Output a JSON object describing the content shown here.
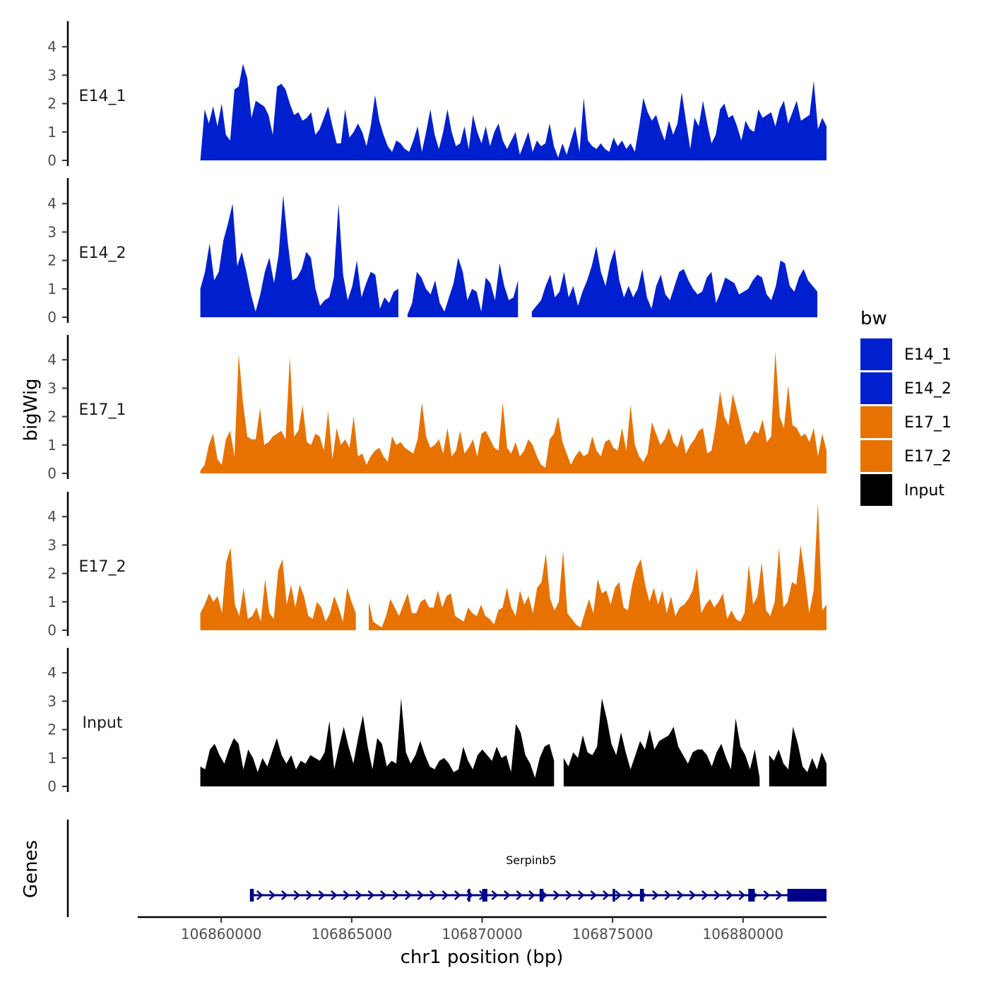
{
  "chart_data": {
    "type": "area",
    "title": "",
    "ylabel": "bigWig",
    "xlabel": "chr1 position (bp)",
    "genes_label": "Genes",
    "xlim": [
      106856800,
      106883200
    ],
    "ylim": [
      0,
      4.9
    ],
    "x_ticks": [
      106860000,
      106865000,
      106870000,
      106875000,
      106880000
    ],
    "x_tick_labels": [
      "106860000",
      "106865000",
      "106870000",
      "106875000",
      "106880000"
    ],
    "y_ticks": [
      0,
      1,
      2,
      3,
      4
    ],
    "y_tick_labels": [
      "0",
      "1",
      "2",
      "3",
      "4"
    ],
    "x_start": 106859200,
    "x_end": 106883200,
    "series": [
      {
        "name": "E14_1",
        "color": "#0020D0",
        "gaps": [
          [
            106871800,
            106871900
          ]
        ],
        "values": [
          0,
          1.8,
          1.3,
          1.9,
          1.2,
          2.0,
          0.9,
          0.7,
          2.5,
          2.6,
          3.4,
          2.9,
          1.5,
          2.1,
          2.0,
          1.9,
          1.6,
          0.9,
          2.6,
          2.7,
          2.5,
          2.0,
          1.6,
          1.7,
          1.4,
          1.5,
          1.7,
          0.9,
          1.1,
          1.5,
          1.9,
          1.2,
          0.6,
          0.6,
          1.8,
          0.8,
          1.0,
          1.3,
          1.0,
          0.5,
          1.2,
          2.3,
          1.4,
          0.9,
          0.5,
          0.3,
          0.7,
          0.6,
          0.4,
          0.3,
          0.7,
          1.2,
          0.3,
          1.0,
          1.8,
          0.9,
          0.4,
          1.0,
          1.8,
          1.0,
          0.5,
          0.6,
          1.2,
          0.4,
          1.6,
          1.0,
          0.6,
          1.2,
          0.5,
          1.0,
          1.3,
          0.7,
          0.4,
          0.7,
          1.0,
          0.2,
          0.6,
          1.0,
          0.3,
          0.7,
          0.5,
          0.6,
          1.3,
          0.5,
          0.1,
          0.6,
          0.2,
          0.7,
          1.2,
          0.3,
          2.2,
          0.7,
          0.5,
          0.4,
          0.6,
          0.4,
          0.3,
          0.8,
          0.5,
          0.7,
          0.4,
          0.6,
          0.3,
          1.2,
          2.2,
          1.7,
          1.4,
          1.6,
          1.1,
          0.7,
          1.4,
          0.9,
          1.3,
          2.4,
          1.4,
          0.4,
          1.5,
          1.2,
          2.1,
          1.3,
          0.6,
          0.9,
          1.8,
          2.0,
          1.5,
          1.6,
          1.2,
          0.7,
          1.4,
          1.1,
          1.0,
          1.8,
          1.5,
          1.6,
          1.7,
          1.2,
          1.8,
          2.1,
          1.3,
          1.7,
          2.1,
          1.4,
          1.5,
          1.6,
          2.8,
          1.1,
          1.5,
          1.2
        ]
      },
      {
        "name": "E14_2",
        "color": "#0020D0",
        "gaps": [
          [
            106866800,
            106867000
          ],
          [
            106871500,
            106871800
          ],
          [
            106883000,
            106883200
          ]
        ],
        "values": [
          1.0,
          1.6,
          2.6,
          1.3,
          1.6,
          2.7,
          3.3,
          4.0,
          1.8,
          2.3,
          1.6,
          0.8,
          0.2,
          0.8,
          1.6,
          2.1,
          1.2,
          2.2,
          4.3,
          2.6,
          1.3,
          1.4,
          1.7,
          2.3,
          2.1,
          1.0,
          0.4,
          0.6,
          0.7,
          1.4,
          4.0,
          1.5,
          0.6,
          1.1,
          2.0,
          0.7,
          1.2,
          1.6,
          1.5,
          0.3,
          0.7,
          0.5,
          0.9,
          1.0,
          0.2,
          0.1,
          0.5,
          1.6,
          1.4,
          1.0,
          0.8,
          1.3,
          0.5,
          0.2,
          0.7,
          1.2,
          2.1,
          1.6,
          0.6,
          1.0,
          0.9,
          0.2,
          1.4,
          1.2,
          0.6,
          1.9,
          1.1,
          0.6,
          0.7,
          1.3,
          1.7,
          0.8,
          0.2,
          0.4,
          0.6,
          1.1,
          1.5,
          0.7,
          0.9,
          1.6,
          0.7,
          1.1,
          0.4,
          0.9,
          1.3,
          1.8,
          2.5,
          1.6,
          1.1,
          1.9,
          2.4,
          1.3,
          0.7,
          1.1,
          0.7,
          1.0,
          1.7,
          0.7,
          0.3,
          1.1,
          1.5,
          0.8,
          0.6,
          1.1,
          1.6,
          1.7,
          1.3,
          1.0,
          0.8,
          0.9,
          1.4,
          1.6,
          0.5,
          0.9,
          1.4,
          1.3,
          1.2,
          0.8,
          0.9,
          1.0,
          1.3,
          1.5,
          1.4,
          0.8,
          0.6,
          1.1,
          2.0,
          1.9,
          1.1,
          0.9,
          1.4,
          1.7,
          1.3,
          1.1,
          0.9,
          0.8,
          0.9
        ]
      },
      {
        "name": "E17_1",
        "color": "#E87200",
        "gaps": [],
        "values": [
          0.1,
          0.3,
          1.0,
          1.4,
          0.5,
          0.3,
          1.2,
          1.5,
          0.6,
          4.2,
          2.5,
          1.3,
          1.2,
          1.2,
          2.3,
          1.0,
          1.1,
          1.3,
          1.4,
          1.5,
          1.2,
          4.1,
          1.3,
          1.5,
          2.4,
          1.1,
          1.0,
          1.4,
          1.3,
          0.8,
          2.2,
          0.5,
          1.6,
          1.0,
          1.2,
          0.9,
          2.0,
          0.6,
          0.7,
          0.3,
          0.6,
          0.8,
          0.9,
          0.6,
          0.4,
          1.3,
          1.0,
          1.1,
          0.9,
          0.8,
          0.7,
          1.2,
          2.5,
          1.3,
          0.9,
          1.0,
          1.2,
          0.7,
          1.6,
          0.6,
          0.8,
          1.5,
          0.7,
          0.9,
          1.2,
          0.6,
          1.4,
          1.5,
          1.2,
          0.9,
          0.8,
          2.5,
          0.9,
          0.7,
          1.1,
          0.6,
          0.8,
          1.2,
          1.0,
          0.6,
          0.3,
          0.2,
          1.2,
          1.4,
          2.0,
          1.1,
          0.7,
          0.3,
          0.6,
          0.8,
          0.6,
          0.7,
          1.3,
          0.8,
          0.6,
          1.1,
          1.2,
          0.9,
          0.8,
          1.6,
          0.8,
          2.4,
          1.0,
          0.6,
          0.4,
          0.7,
          1.8,
          1.4,
          1.0,
          1.2,
          1.6,
          1.1,
          0.9,
          1.4,
          0.7,
          1.0,
          1.2,
          1.5,
          1.6,
          0.7,
          0.8,
          1.7,
          2.9,
          2.0,
          1.7,
          2.8,
          2.2,
          1.6,
          1.0,
          1.2,
          1.5,
          1.4,
          1.9,
          1.1,
          1.3,
          4.3,
          2.0,
          1.6,
          3.1,
          1.7,
          1.6,
          1.3,
          1.4,
          1.1,
          1.6,
          0.6,
          1.4,
          0.8
        ]
      },
      {
        "name": "E17_2",
        "color": "#E87200",
        "gaps": [
          [
            106865300,
            106865500
          ]
        ],
        "values": [
          0.6,
          0.9,
          1.3,
          1.0,
          1.2,
          0.6,
          2.4,
          2.9,
          0.9,
          0.5,
          1.5,
          0.4,
          0.5,
          0.8,
          0.3,
          1.8,
          0.6,
          0.4,
          2.1,
          2.5,
          0.9,
          1.6,
          0.8,
          1.6,
          1.2,
          0.5,
          0.4,
          1.0,
          0.8,
          0.3,
          0.6,
          1.2,
          0.8,
          0.3,
          1.5,
          1.0,
          0.6,
          1.0,
          1.4,
          1.0,
          0.3,
          0.2,
          0.1,
          0.5,
          1.1,
          0.8,
          0.5,
          0.9,
          1.3,
          0.6,
          0.6,
          1.0,
          1.1,
          0.8,
          0.8,
          1.4,
          0.8,
          1.2,
          1.3,
          0.5,
          0.4,
          0.3,
          0.8,
          0.6,
          0.5,
          0.9,
          0.5,
          0.4,
          0.2,
          0.7,
          0.8,
          1.5,
          0.8,
          0.5,
          1.4,
          0.9,
          1.2,
          0.6,
          1.5,
          1.7,
          2.7,
          1.1,
          0.7,
          1.0,
          2.8,
          0.6,
          0.4,
          0.2,
          0.1,
          0.6,
          1.1,
          0.6,
          1.8,
          1.3,
          1.4,
          0.9,
          1.5,
          1.7,
          0.8,
          0.7,
          1.6,
          2.2,
          2.5,
          1.6,
          1.0,
          1.5,
          0.9,
          1.4,
          0.6,
          1.2,
          0.5,
          0.8,
          0.9,
          1.1,
          1.4,
          2.2,
          0.6,
          0.9,
          1.1,
          0.8,
          1.0,
          1.3,
          0.4,
          0.7,
          0.4,
          0.3,
          0.6,
          2.3,
          0.9,
          1.2,
          2.4,
          0.7,
          0.5,
          1.0,
          2.9,
          0.8,
          1.0,
          1.7,
          1.6,
          3.0,
          1.9,
          0.6,
          1.4,
          4.5,
          0.7,
          0.9
        ]
      },
      {
        "name": "Input",
        "color": "#000000",
        "gaps": [
          [
            106872800,
            106873000
          ],
          [
            106880800,
            106881000
          ]
        ],
        "values": [
          0.7,
          0.6,
          1.3,
          1.5,
          1.1,
          0.8,
          1.3,
          1.7,
          1.5,
          0.6,
          1.3,
          1.0,
          0.5,
          1.0,
          0.7,
          1.2,
          1.7,
          1.1,
          0.8,
          1.1,
          0.6,
          0.9,
          0.8,
          1.1,
          1.0,
          0.9,
          1.2,
          2.3,
          0.6,
          1.4,
          2.1,
          1.4,
          0.8,
          1.7,
          2.5,
          1.4,
          0.6,
          1.7,
          1.5,
          0.7,
          0.9,
          0.8,
          3.1,
          1.2,
          0.8,
          1.1,
          1.6,
          1.1,
          0.7,
          0.6,
          0.9,
          1.0,
          0.8,
          0.5,
          0.6,
          1.4,
          0.9,
          0.6,
          1.1,
          1.3,
          1.1,
          0.9,
          1.4,
          1.0,
          1.1,
          0.5,
          2.2,
          1.9,
          1.1,
          0.8,
          0.3,
          1.0,
          1.4,
          1.5,
          0.9,
          1.7,
          1.0,
          0.7,
          1.2,
          1.0,
          1.8,
          1.2,
          1.1,
          1.4,
          3.1,
          2.4,
          1.5,
          1.1,
          1.9,
          1.2,
          0.6,
          1.1,
          1.6,
          1.3,
          2.0,
          1.3,
          1.6,
          1.7,
          1.8,
          2.1,
          1.4,
          1.1,
          0.8,
          1.2,
          1.3,
          1.3,
          1.1,
          0.7,
          1.2,
          1.5,
          1.0,
          0.6,
          2.4,
          1.4,
          1.1,
          0.6,
          1.3,
          0.3,
          1.0,
          1.1,
          0.9,
          1.3,
          0.8,
          0.6,
          2.1,
          1.5,
          0.7,
          0.5,
          1.0,
          0.6,
          1.2,
          0.8
        ]
      }
    ],
    "legend": {
      "title": "bw",
      "position": "right",
      "entries": [
        {
          "label": "E14_1",
          "color": "#0020D0"
        },
        {
          "label": "E14_2",
          "color": "#0020D0"
        },
        {
          "label": "E17_1",
          "color": "#E87200"
        },
        {
          "label": "E17_2",
          "color": "#E87200"
        },
        {
          "label": "Input",
          "color": "#000000"
        }
      ]
    },
    "gene": {
      "name": "Serpinb5",
      "strand": "+",
      "color": "#000088",
      "tx_start": 106861100,
      "tx_end": 106883200,
      "exons": [
        [
          106861100,
          106861250
        ],
        [
          106869450,
          106869550
        ],
        [
          106870000,
          106870200
        ],
        [
          106872200,
          106872350
        ],
        [
          106875000,
          106875100
        ],
        [
          106876050,
          106876200
        ],
        [
          106880200,
          106880450
        ],
        [
          106881700,
          106883200
        ]
      ],
      "thick_exon": [
        106881700,
        106883200
      ]
    }
  }
}
